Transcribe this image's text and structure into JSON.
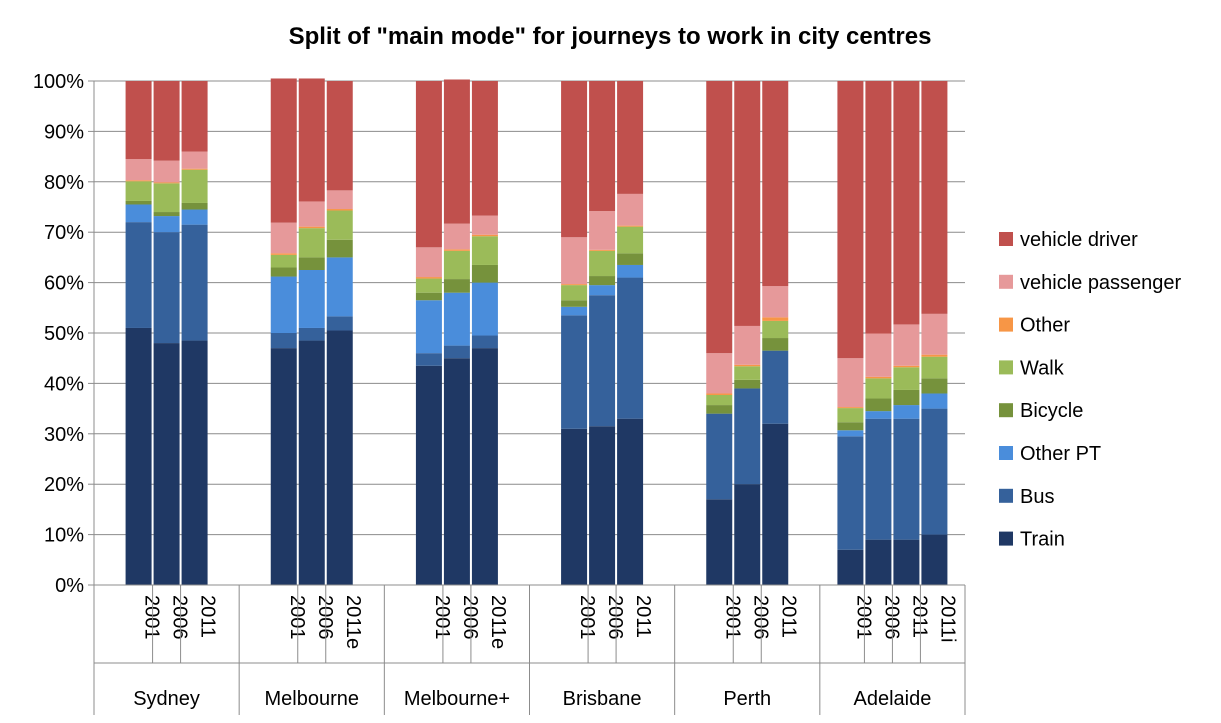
{
  "chart_data": {
    "type": "bar",
    "stacked": true,
    "normalized": true,
    "title": "Split of \"main mode\" for journeys to work in city centres",
    "ylim": [
      0,
      100
    ],
    "y_ticks": [
      "0%",
      "10%",
      "20%",
      "30%",
      "40%",
      "50%",
      "60%",
      "70%",
      "80%",
      "90%",
      "100%"
    ],
    "grid": true,
    "legend_position": "right",
    "groups": [
      {
        "name": "Sydney",
        "years": [
          "2001",
          "2006",
          "2011"
        ]
      },
      {
        "name": "Melbourne",
        "years": [
          "2001",
          "2006",
          "2011e"
        ]
      },
      {
        "name": "Melbourne+",
        "years": [
          "2001",
          "2006",
          "2011e"
        ]
      },
      {
        "name": "Brisbane",
        "years": [
          "2001",
          "2006",
          "2011"
        ]
      },
      {
        "name": "Perth",
        "years": [
          "2001",
          "2006",
          "2011"
        ]
      },
      {
        "name": "Adelaide",
        "years": [
          "2001",
          "2006",
          "2011",
          "2011i"
        ]
      }
    ],
    "series": [
      {
        "name": "Train",
        "color": "#1F3864",
        "values": [
          51,
          48,
          48.5,
          47,
          48.5,
          50.5,
          43.5,
          45,
          47,
          31,
          31.5,
          33,
          17,
          20,
          32,
          7,
          9,
          9,
          10
        ]
      },
      {
        "name": "Bus",
        "color": "#35619B",
        "values": [
          21,
          22,
          23,
          3,
          2.5,
          2.8,
          2.5,
          2.5,
          2.5,
          22.5,
          26,
          28,
          17,
          19,
          14.5,
          22.5,
          24,
          24,
          25
        ]
      },
      {
        "name": "Other PT",
        "color": "#4A8DDB",
        "values": [
          3.5,
          3.2,
          3,
          11.2,
          11.5,
          11.7,
          10.5,
          10.5,
          10.5,
          1.7,
          2,
          2.5,
          0,
          0,
          0,
          1.2,
          1.5,
          2.7,
          3
        ]
      },
      {
        "name": "Bicycle",
        "color": "#76923C",
        "values": [
          0.7,
          0.8,
          1.3,
          1.8,
          2.5,
          3.5,
          1.5,
          2.7,
          3.5,
          1.3,
          1.8,
          2.3,
          1.7,
          1.7,
          2.5,
          1.6,
          2.5,
          3,
          3
        ]
      },
      {
        "name": "Walk",
        "color": "#9BBB59",
        "values": [
          3.9,
          5.7,
          6.6,
          2.5,
          5.8,
          5.8,
          2.8,
          5.6,
          5.7,
          3,
          5,
          5.3,
          2,
          2.7,
          3.4,
          2.8,
          4,
          4.5,
          4.3
        ]
      },
      {
        "name": "Other",
        "color": "#F79646",
        "values": [
          0.2,
          0.2,
          0.2,
          0.3,
          0.3,
          0.3,
          0.3,
          0.3,
          0.3,
          0.2,
          0.2,
          0.2,
          0.3,
          0.3,
          0.7,
          0.2,
          0.3,
          0.3,
          0.4
        ]
      },
      {
        "name": "vehicle passenger",
        "color": "#E6999A",
        "values": [
          4.2,
          4.3,
          3.4,
          6.1,
          5,
          3.7,
          5.9,
          5.1,
          3.8,
          9.3,
          7.7,
          6.3,
          8,
          7.7,
          6.2,
          9.7,
          8.6,
          8.2,
          8.1
        ]
      },
      {
        "name": "vehicle driver",
        "color": "#C0504D",
        "values": [
          15.5,
          15.8,
          14,
          28.6,
          24.4,
          21.7,
          33,
          28.6,
          26.7,
          31,
          25.8,
          22.4,
          54,
          48.6,
          40.7,
          55,
          50.1,
          48.3,
          46.2
        ]
      }
    ],
    "legend_order": [
      "vehicle driver",
      "vehicle passenger",
      "Other",
      "Walk",
      "Bicycle",
      "Other PT",
      "Bus",
      "Train"
    ]
  }
}
